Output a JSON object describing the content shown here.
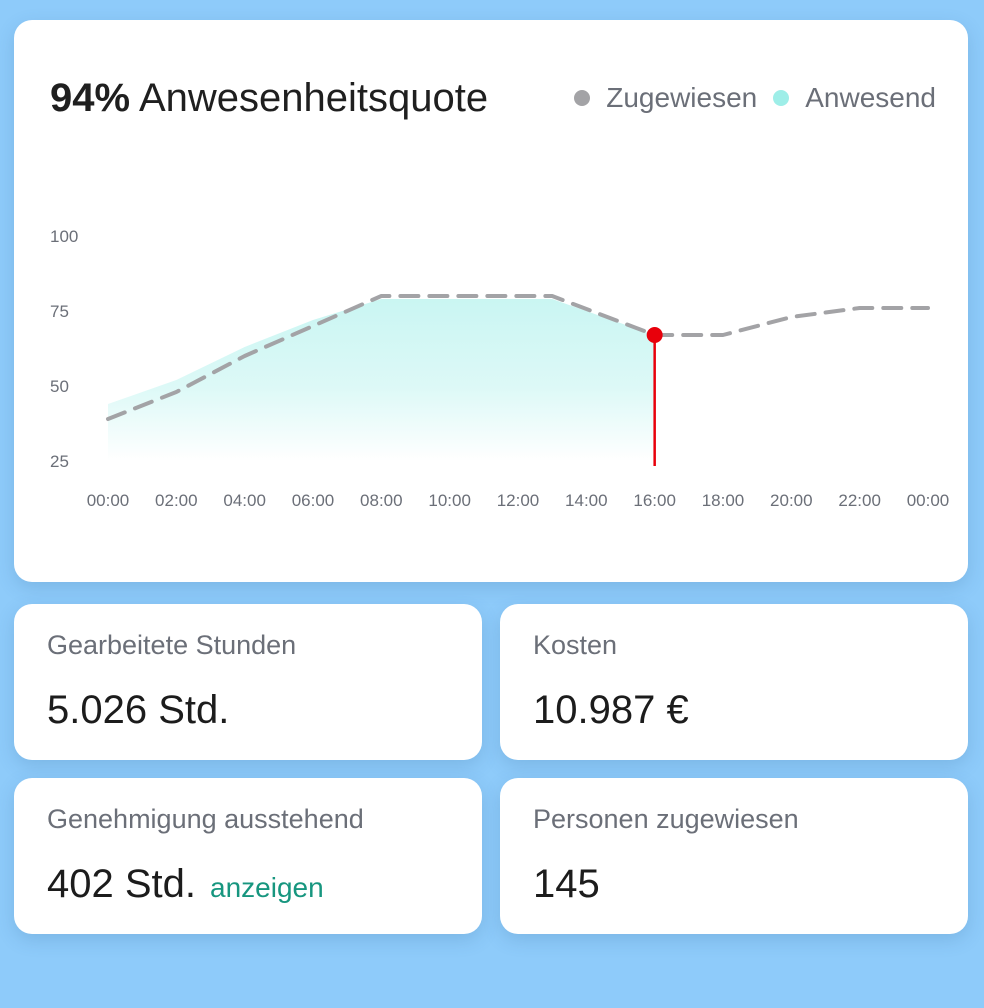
{
  "header": {
    "percent": "94%",
    "title": "Anwesenheitsquote",
    "legend": [
      {
        "label": "Zugewiesen",
        "color": "#a3a3a6"
      },
      {
        "label": "Anwesend",
        "color": "#9eeee8"
      }
    ]
  },
  "chart_data": {
    "type": "line",
    "title": "94% Anwesenheitsquote",
    "xlabel": "",
    "ylabel": "",
    "x_ticks": [
      "00:00",
      "02:00",
      "04:00",
      "06:00",
      "08:00",
      "10:00",
      "12:00",
      "14:00",
      "16:00",
      "18:00",
      "20:00",
      "22:00",
      "00:00"
    ],
    "y_ticks": [
      100,
      75,
      50,
      25
    ],
    "ylim": [
      25,
      100
    ],
    "xlim": [
      0,
      24
    ],
    "grid": false,
    "legend_position": "top-right",
    "current_time": 16,
    "current_value": 67,
    "series": [
      {
        "name": "Zugewiesen",
        "style": "dashed-line",
        "color": "#a3a3a6",
        "x": [
          0,
          2,
          4,
          6,
          8,
          10,
          12,
          13,
          16,
          18,
          20,
          22,
          24
        ],
        "y": [
          39,
          48,
          60,
          70,
          80,
          80,
          80,
          80,
          67,
          67,
          73,
          76,
          76
        ]
      },
      {
        "name": "Anwesend",
        "style": "area",
        "color": "#9eeee8",
        "x": [
          0,
          2,
          4,
          6,
          8,
          10,
          12,
          13,
          16
        ],
        "y": [
          44,
          52,
          63,
          72,
          79,
          79,
          79,
          79,
          67
        ]
      }
    ]
  },
  "stats": {
    "hours": {
      "label": "Gearbeitete Stunden",
      "value": "5.026 Std."
    },
    "cost": {
      "label": "Kosten",
      "value": "10.987 €"
    },
    "pending": {
      "label": "Genehmigung ausstehend",
      "value": "402 Std.",
      "link": "anzeigen"
    },
    "persons": {
      "label": "Personen zugewiesen",
      "value": "145"
    }
  },
  "colors": {
    "background": "#8ecbfa",
    "marker": "#e8000b",
    "link": "#17967f"
  }
}
